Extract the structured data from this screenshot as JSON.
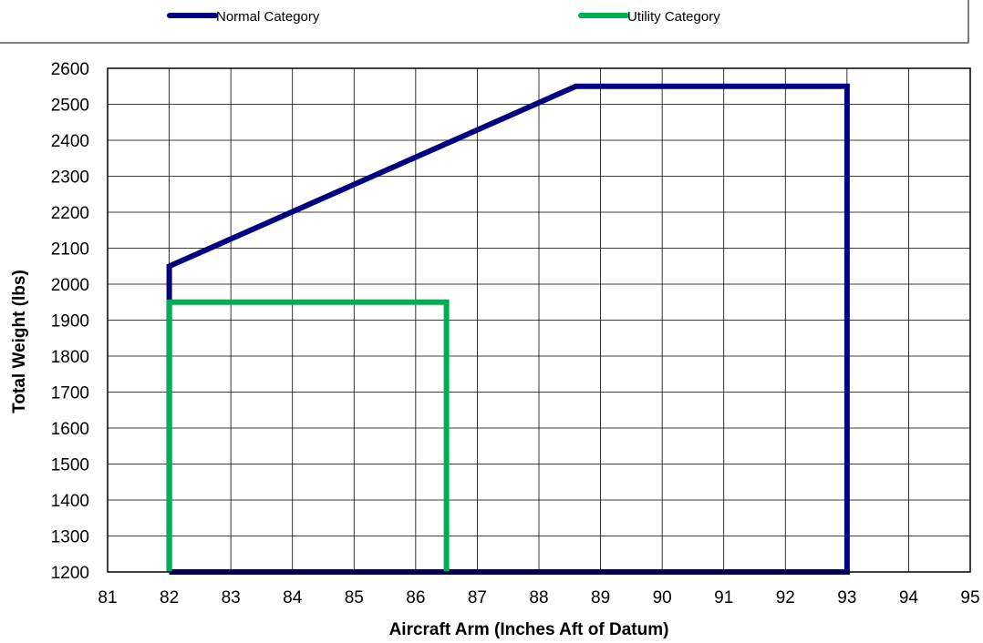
{
  "chart_data": {
    "type": "line",
    "title": "",
    "xlabel": "Aircraft Arm (Inches Aft of Datum)",
    "ylabel": "Total Weight (lbs)",
    "xlim": [
      81,
      95
    ],
    "ylim": [
      1200,
      2600
    ],
    "x_ticks": [
      81,
      82,
      83,
      84,
      85,
      86,
      87,
      88,
      89,
      90,
      91,
      92,
      93,
      94,
      95
    ],
    "y_ticks": [
      1200,
      1300,
      1400,
      1500,
      1600,
      1700,
      1800,
      1900,
      2000,
      2100,
      2200,
      2300,
      2400,
      2500,
      2600
    ],
    "grid": true,
    "legend_position": "top",
    "series": [
      {
        "name": "Normal Category",
        "color": "#000080",
        "points": [
          [
            82,
            1200
          ],
          [
            82,
            2050
          ],
          [
            88.6,
            2550
          ],
          [
            93,
            2550
          ],
          [
            93,
            1200
          ],
          [
            82,
            1200
          ]
        ]
      },
      {
        "name": "Utility Category",
        "color": "#00B050",
        "points": [
          [
            82,
            1200
          ],
          [
            82,
            1950
          ],
          [
            86.5,
            1950
          ],
          [
            86.5,
            1200
          ]
        ]
      }
    ]
  }
}
